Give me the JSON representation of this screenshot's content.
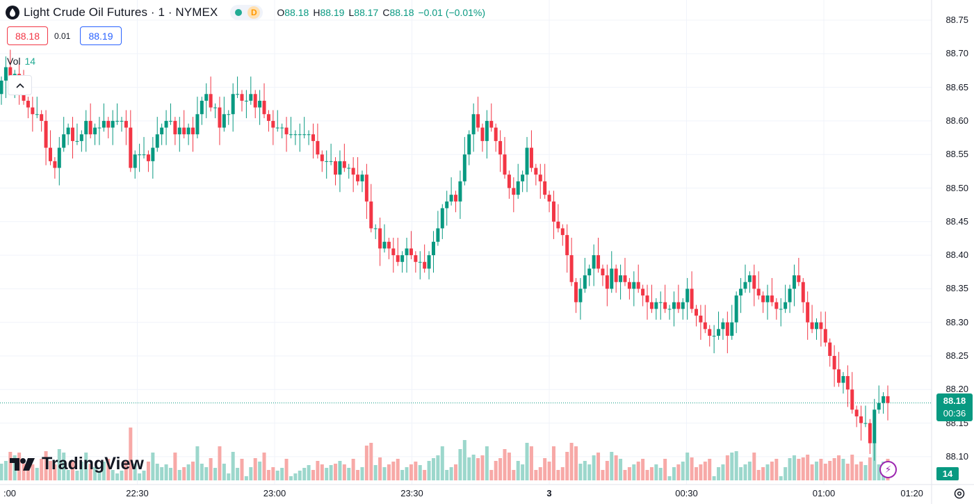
{
  "header": {
    "title": "Light Crude Oil Futures · 1 · NYMEX",
    "session_badge": "D",
    "ohlc": {
      "o_label": "O",
      "o": "88.18",
      "h_label": "H",
      "h": "88.19",
      "l_label": "L",
      "l": "88.17",
      "c_label": "C",
      "c": "88.18",
      "change": "−0.01 (−0.01%)"
    }
  },
  "trade": {
    "bid": "88.18",
    "spread": "0.01",
    "ask": "88.19"
  },
  "volume_legend": {
    "label": "Vol",
    "value": "14"
  },
  "last_price": {
    "price": "88.18",
    "countdown": "00:36"
  },
  "volume_badge": "14",
  "logo_text": "TradingView",
  "colors": {
    "up": "#089981",
    "down": "#f23645",
    "vol_up": "#9cd7cc",
    "vol_down": "#f7a9a7",
    "grid": "#f0f3fa",
    "accent": "#9c27b0"
  },
  "icons": {
    "symbol": "oil-drop-icon",
    "collapse": "chevron-up-icon",
    "alert": "lightning-icon",
    "settings": "gear-icon"
  },
  "chart_data": {
    "type": "candlestick",
    "y_ticks": [
      "88.75",
      "88.70",
      "88.65",
      "88.60",
      "88.55",
      "88.50",
      "88.45",
      "88.40",
      "88.35",
      "88.30",
      "88.25",
      "88.20",
      "88.15",
      "88.10"
    ],
    "x_ticks": [
      {
        "label": ":00",
        "minute": 0
      },
      {
        "label": "22:30",
        "minute": 30
      },
      {
        "label": "23:00",
        "minute": 60
      },
      {
        "label": "23:30",
        "minute": 90
      },
      {
        "label": "3",
        "minute": 120
      },
      {
        "label": "00:30",
        "minute": 150
      },
      {
        "label": "01:00",
        "minute": 180
      },
      {
        "label": "01:20",
        "minute": 200
      }
    ],
    "ylim": [
      88.075,
      88.785
    ],
    "series_close": [
      88.66,
      88.68,
      88.65,
      88.67,
      88.65,
      88.63,
      88.62,
      88.61,
      88.61,
      88.6,
      88.56,
      88.54,
      88.53,
      88.56,
      88.58,
      88.59,
      88.57,
      88.57,
      88.58,
      88.6,
      88.58,
      88.59,
      88.59,
      88.6,
      88.59,
      88.6,
      88.6,
      88.6,
      88.59,
      88.53,
      88.55,
      88.55,
      88.55,
      88.54,
      88.56,
      88.58,
      88.59,
      88.6,
      88.6,
      88.58,
      88.59,
      88.58,
      88.59,
      88.58,
      88.61,
      88.63,
      88.64,
      88.62,
      88.62,
      88.59,
      88.61,
      88.61,
      88.64,
      88.64,
      88.63,
      88.63,
      88.64,
      88.62,
      88.63,
      88.61,
      88.6,
      88.59,
      88.59,
      88.59,
      88.58,
      88.58,
      88.58,
      88.58,
      88.58,
      88.58,
      88.57,
      88.55,
      88.54,
      88.54,
      88.54,
      88.52,
      88.54,
      88.53,
      88.53,
      88.52,
      88.51,
      88.52,
      88.48,
      88.44,
      88.44,
      88.41,
      88.42,
      88.41,
      88.4,
      88.39,
      88.4,
      88.41,
      88.4,
      88.39,
      88.39,
      88.38,
      88.4,
      88.42,
      88.44,
      88.47,
      88.48,
      88.49,
      88.48,
      88.51,
      88.55,
      88.58,
      88.61,
      88.59,
      88.57,
      88.6,
      88.59,
      88.57,
      88.55,
      88.52,
      88.5,
      88.49,
      88.51,
      88.52,
      88.56,
      88.53,
      88.52,
      88.51,
      88.49,
      88.48,
      88.45,
      88.44,
      88.43,
      88.4,
      88.36,
      88.33,
      88.35,
      88.37,
      88.38,
      88.4,
      88.38,
      88.37,
      88.35,
      88.38,
      88.36,
      88.37,
      88.36,
      88.35,
      88.36,
      88.35,
      88.34,
      88.33,
      88.32,
      88.33,
      88.33,
      88.32,
      88.32,
      88.33,
      88.32,
      88.33,
      88.35,
      88.32,
      88.31,
      88.3,
      88.29,
      88.28,
      88.28,
      88.29,
      88.3,
      88.28,
      88.3,
      88.34,
      88.35,
      88.36,
      88.37,
      88.35,
      88.34,
      88.33,
      88.34,
      88.33,
      88.32,
      88.32,
      88.33,
      88.35,
      88.37,
      88.36,
      88.33,
      88.3,
      88.29,
      88.3,
      88.29,
      88.27,
      88.25,
      88.23,
      88.21,
      88.22,
      88.2,
      88.17,
      88.16,
      88.15,
      88.15,
      88.12,
      88.17,
      88.18,
      88.19,
      88.18
    ]
  }
}
